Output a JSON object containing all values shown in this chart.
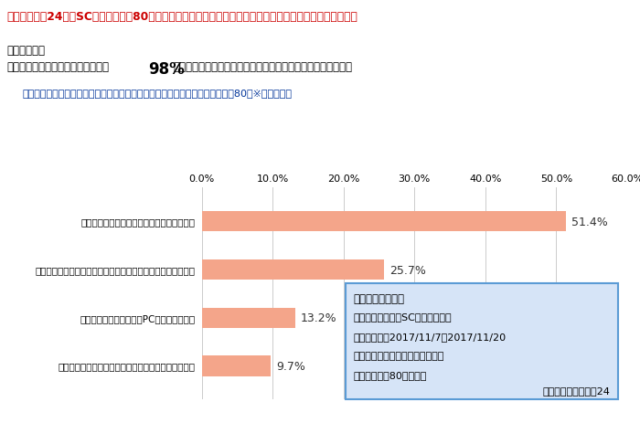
{
  "title": "ベルシステモ24松江SCで働く大学生80名を対象にコンタクトセンター勤務と就活に関するアンケートを実施",
  "survey_result_label": "「調査結果」",
  "survey_result_label2": "【調査結果】",
  "survey_result_text": "学部、学年、性別を問わず回答者の",
  "survey_result_pct": "98%",
  "survey_result_text2": "がコンタクトセンター勤務は就職活動に役立ったと回答した。",
  "question_label": "（就職活動に役立つと回答した人）どのように役立つと思いますか？　（ｮ＝80）※複数回答可",
  "categories": [
    "ビジネスマナー（敗語、話し方）が身につく",
    "様々な電話対応を柔軟にこなすことで、精神的にタフになった",
    "ブラインドタッチなど、PCスキルがあがる",
    "多様な同僚と働く事で、コミュニケーション力がつく"
  ],
  "values": [
    51.4,
    25.7,
    13.2,
    9.7
  ],
  "bar_color": "#F4A58A",
  "xlim": [
    0,
    60
  ],
  "xticks": [
    0,
    10,
    20,
    30,
    40,
    50,
    60
  ],
  "xtick_labels": [
    "0.0%",
    "10.0%",
    "20.0%",
    "30.0%",
    "40.0%",
    "50.0%",
    "60.0%"
  ],
  "title_color": "#CC0000",
  "text_color": "#000000",
  "question_color": "#003399",
  "grid_color": "#CCCCCC",
  "box_title": "【調査結果概要】",
  "box_lines": [
    "調査対象　：松江SC勤務の大学生",
    "調査期間　：2017/11/7～2017/11/20",
    "調査方法　：社内アンケート調査",
    "有効回答数：80サンプル"
  ],
  "box_footer": "（株）ベルシステモ24",
  "box_bg": "#D6E4F7",
  "box_border": "#5B9BD5",
  "background_color": "#FFFFFF"
}
